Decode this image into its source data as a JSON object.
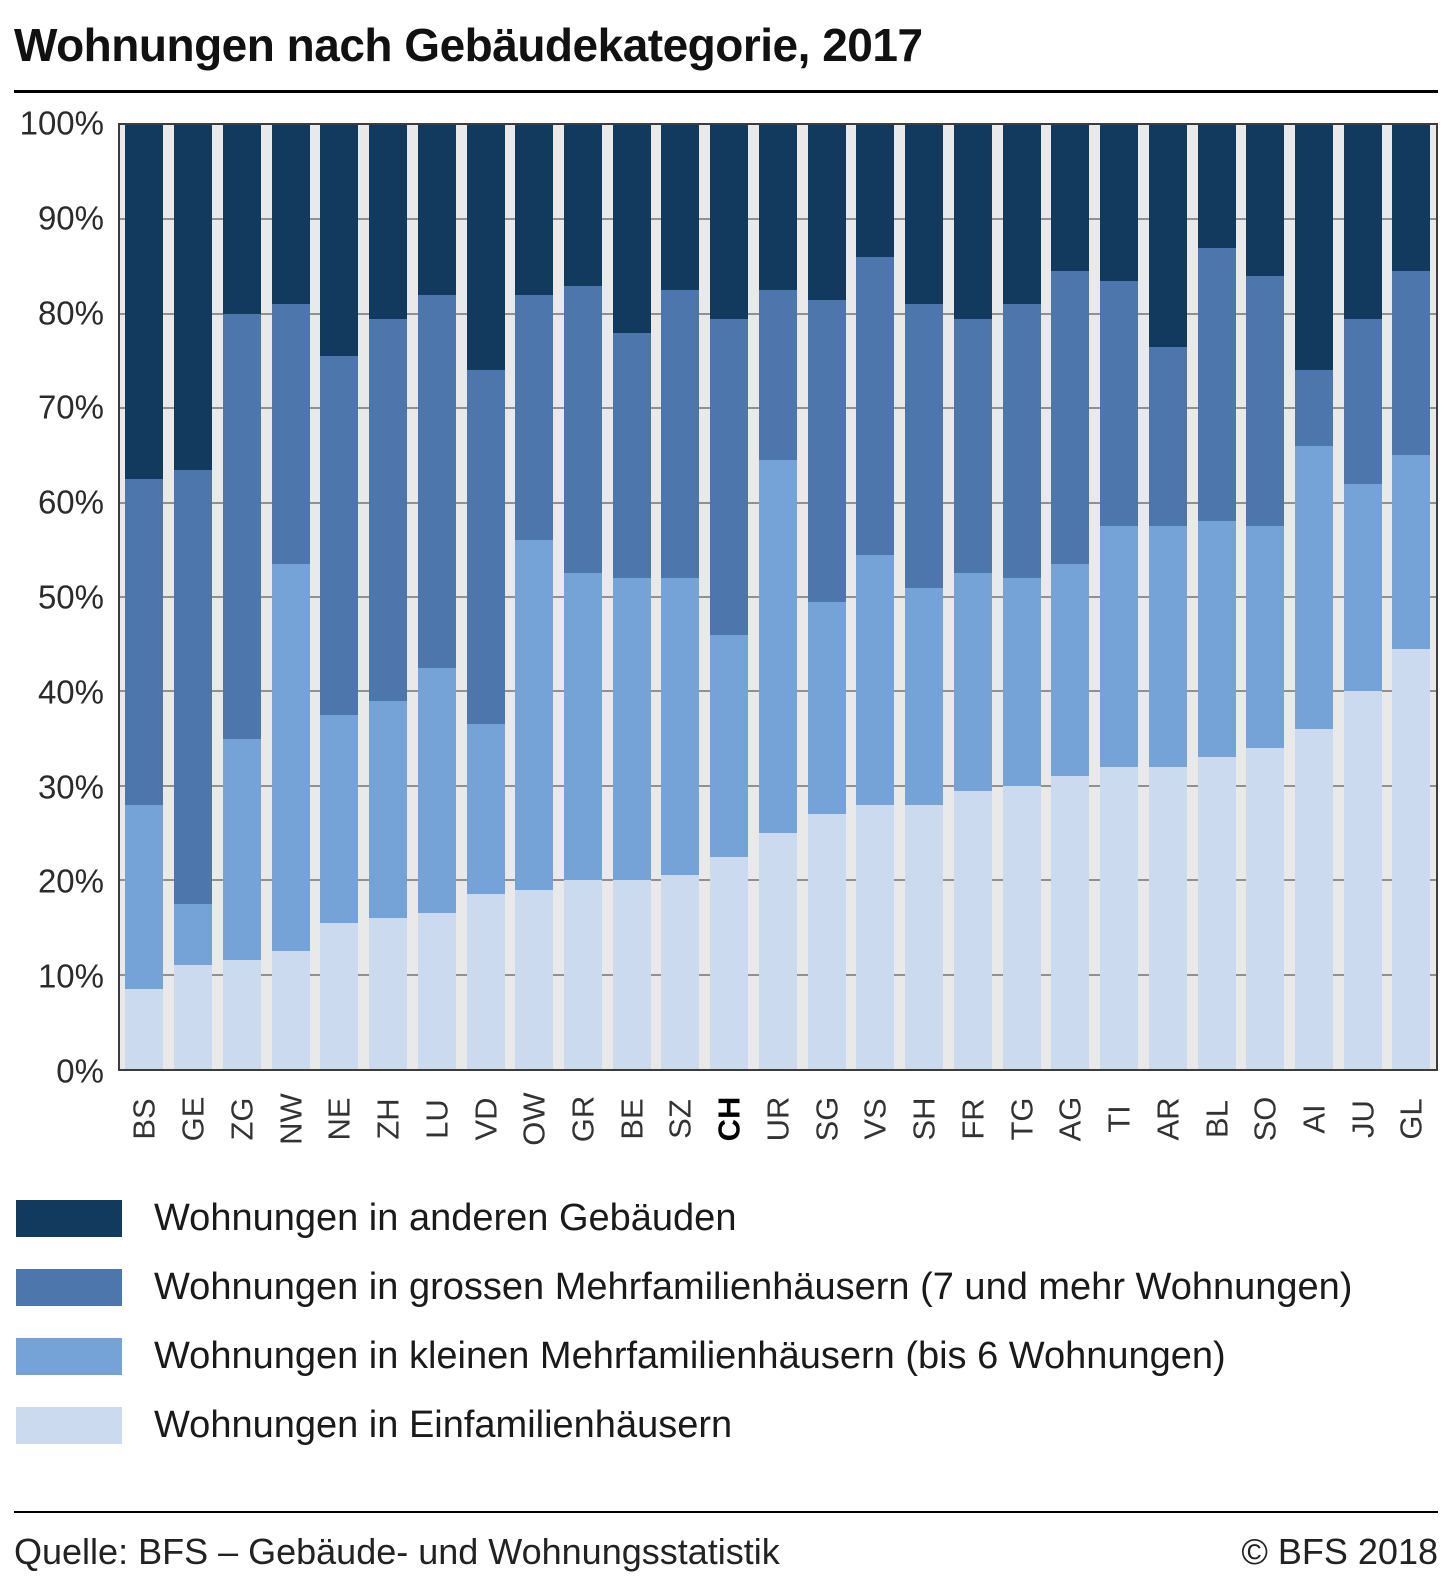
{
  "title": "Wohnungen nach Gebäudekategorie, 2017",
  "chart_data": {
    "type": "bar",
    "stacked": true,
    "percent": true,
    "title": "Wohnungen nach Gebäudekategorie, 2017",
    "xlabel": "",
    "ylabel": "",
    "ylim": [
      0,
      100
    ],
    "grid": true,
    "legend_position": "bottom",
    "y_ticks": [
      "0%",
      "10%",
      "20%",
      "30%",
      "40%",
      "50%",
      "60%",
      "70%",
      "80%",
      "90%",
      "100%"
    ],
    "categories": [
      "BS",
      "GE",
      "ZG",
      "NW",
      "NE",
      "ZH",
      "LU",
      "VD",
      "OW",
      "GR",
      "BE",
      "SZ",
      "CH",
      "UR",
      "SG",
      "VS",
      "SH",
      "FR",
      "TG",
      "AG",
      "TI",
      "AR",
      "BL",
      "SO",
      "AI",
      "JU",
      "GL"
    ],
    "bold_category": "CH",
    "series": [
      {
        "name": "Wohnungen in Einfamilienhäusern",
        "color": "#ccdaef",
        "values": [
          8.5,
          11,
          11.5,
          12.5,
          15.5,
          16,
          16.5,
          18.5,
          19,
          20,
          20,
          20.5,
          22.5,
          25,
          27,
          28,
          28,
          29.5,
          30,
          31,
          32,
          32,
          33,
          34,
          36,
          40,
          44.5
        ]
      },
      {
        "name": "Wohnungen in kleinen Mehrfamilienhäusern (bis 6 Wohnungen)",
        "color": "#76a3d7",
        "values": [
          19.5,
          6.5,
          23.5,
          41,
          22,
          23,
          26,
          18,
          37,
          32.5,
          32,
          31.5,
          23.5,
          39.5,
          22.5,
          26.5,
          23,
          23,
          22,
          22.5,
          25.5,
          25.5,
          25,
          23.5,
          30,
          22,
          20.5
        ]
      },
      {
        "name": "Wohnungen in grossen Mehrfamilienhäusern (7 und mehr Wohnungen)",
        "color": "#4d76ad",
        "values": [
          34.5,
          46,
          45,
          27.5,
          38,
          40.5,
          39.5,
          37.5,
          26,
          30.5,
          26,
          30.5,
          33.5,
          18,
          32,
          31.5,
          30,
          27,
          29,
          31,
          26,
          19,
          29,
          26.5,
          8,
          17.5,
          19.5
        ]
      },
      {
        "name": "Wohnungen in anderen Gebäuden",
        "color": "#12395e",
        "values": [
          37.5,
          36.5,
          20,
          19,
          24.5,
          20.5,
          18,
          26,
          18,
          17,
          22,
          17.5,
          20.5,
          17.5,
          18.5,
          14,
          19,
          20.5,
          19,
          15.5,
          16.5,
          23.5,
          13,
          16,
          26,
          20.5,
          15.5
        ]
      }
    ],
    "legend_order": [
      3,
      2,
      1,
      0
    ]
  },
  "footer": {
    "source": "Quelle: BFS – Gebäude- und Wohnungsstatistik",
    "copyright": "© BFS 2018"
  }
}
